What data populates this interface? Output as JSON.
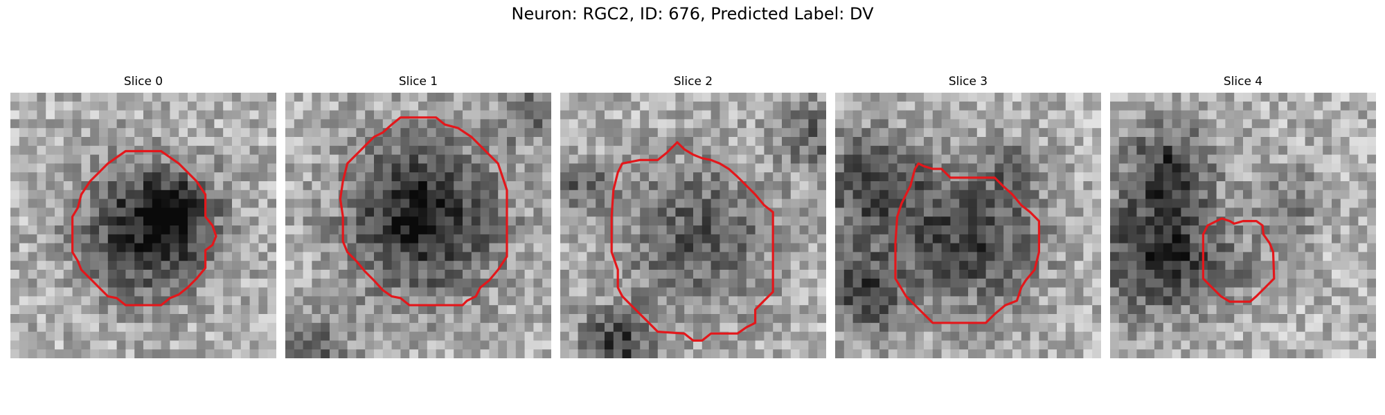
{
  "figure": {
    "title": "Neuron: RGC2, ID: 676, Predicted Label: DV",
    "contour_color": "#e3171b",
    "colormap": "grayscale"
  },
  "panels": [
    {
      "title": "Slice 0"
    },
    {
      "title": "Slice 1"
    },
    {
      "title": "Slice 2"
    },
    {
      "title": "Slice 3"
    },
    {
      "title": "Slice 4"
    }
  ]
}
